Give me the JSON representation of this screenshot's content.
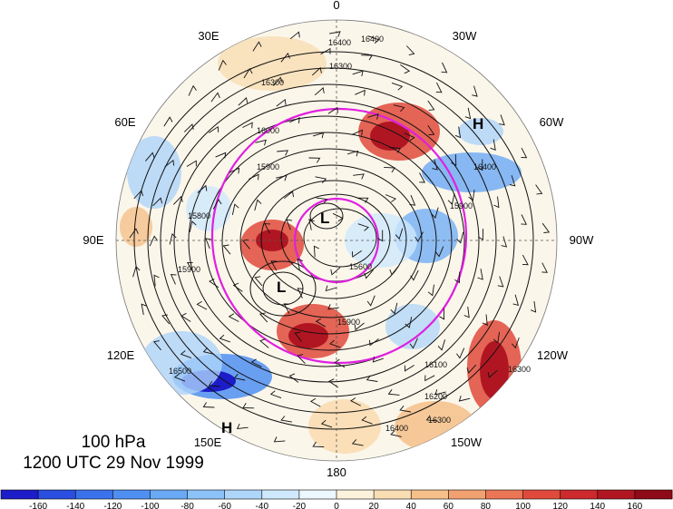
{
  "map": {
    "level": "100 hPa",
    "datetime": "1200 UTC 29 Nov 1999",
    "longitude_labels": {
      "top": "0",
      "upper_right": "30W",
      "right_upper": "60W",
      "right": "90W",
      "right_lower": "120W",
      "lower_right": "150W",
      "bottom": "180",
      "lower_left": "150E",
      "left_lower": "120E",
      "left": "90E",
      "left_upper": "60E",
      "upper_left": "30E"
    },
    "pressure_systems": [
      {
        "label": "H",
        "location": "near 60W"
      },
      {
        "label": "H",
        "location": "near 150E"
      },
      {
        "label": "L",
        "location": "near pole"
      },
      {
        "label": "L",
        "location": "Siberia"
      }
    ],
    "contour_labels": [
      "16400",
      "16400",
      "16300",
      "16300",
      "16000",
      "15900",
      "15900",
      "15800",
      "15900",
      "15600",
      "15900",
      "16100",
      "16200",
      "16300",
      "16400",
      "16500",
      "16300",
      "16400"
    ],
    "colorbar": {
      "tick_labels": [
        "-160",
        "-140",
        "-120",
        "-100",
        "-80",
        "-60",
        "-40",
        "-20",
        "0",
        "20",
        "40",
        "60",
        "80",
        "100",
        "120",
        "140",
        "160"
      ],
      "colors": [
        "#1c1cc8",
        "#2a4fe0",
        "#3a72ec",
        "#4f8ff2",
        "#6aa9f5",
        "#8cc2f8",
        "#aed5fa",
        "#cfe8fc",
        "#ecf7fe",
        "#fdf3dd",
        "#f9ddb3",
        "#f5c08a",
        "#f1a170",
        "#ea7656",
        "#df4a3c",
        "#cc2a2d",
        "#b01622",
        "#8e0a18"
      ]
    }
  }
}
